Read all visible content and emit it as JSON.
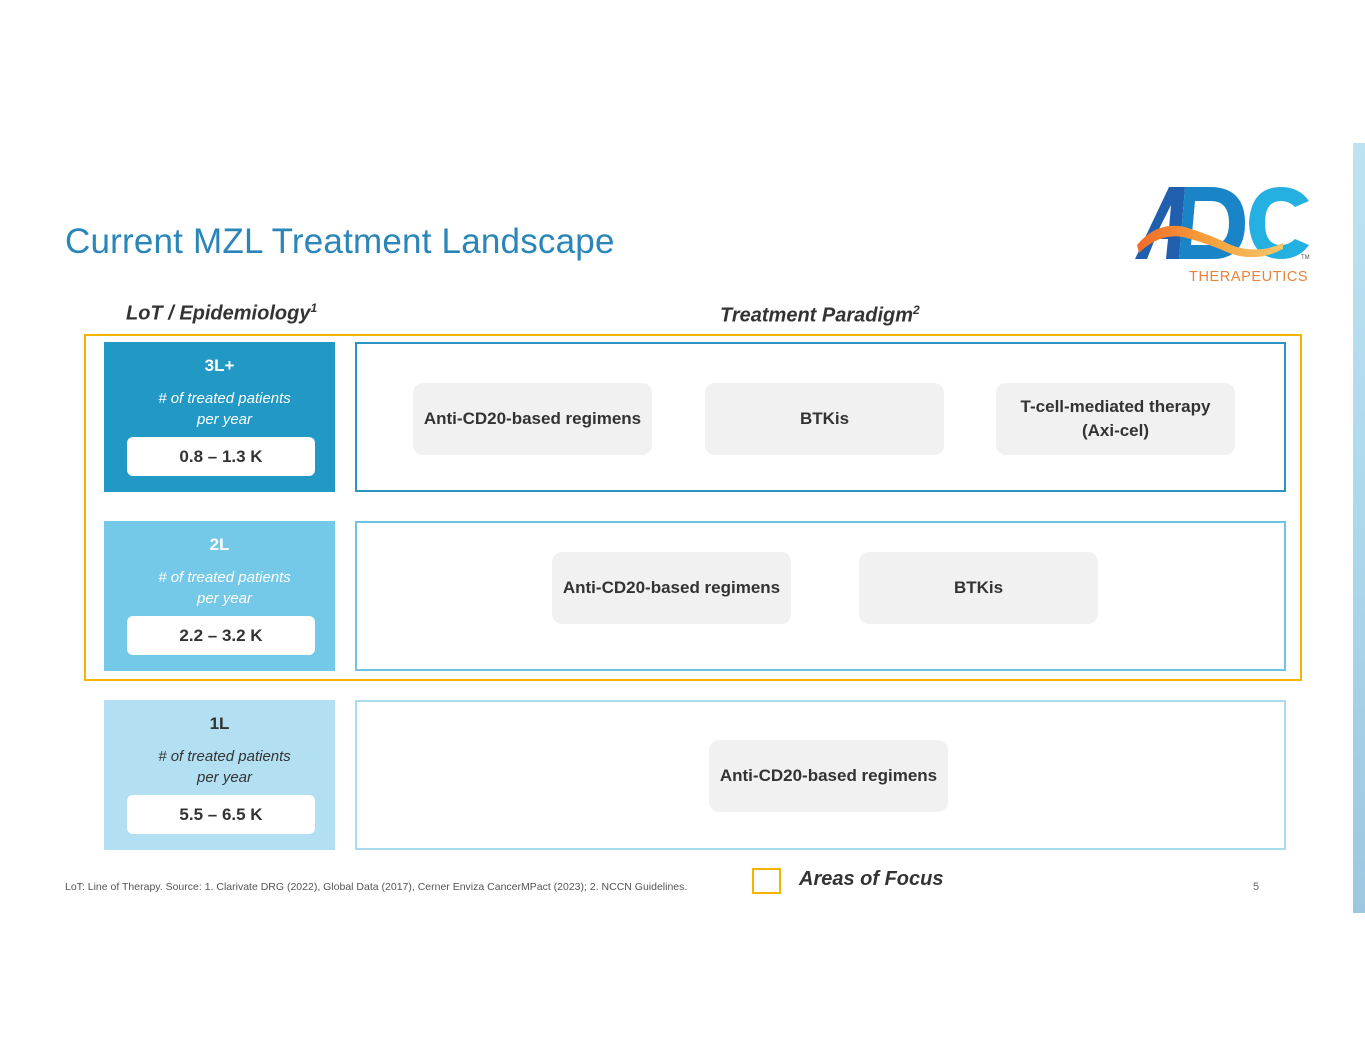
{
  "title": "Current MZL Treatment Landscape",
  "logo": {
    "wordmark": "ADC",
    "tagline": "THERAPEUTICS",
    "tm": "TM"
  },
  "headers": {
    "lot": "LoT / Epidemiology",
    "lot_sup": "1",
    "paradigm": "Treatment Paradigm",
    "paradigm_sup": "2"
  },
  "rows": [
    {
      "line": "3L+",
      "subtitle_line1": "# of treated patients",
      "subtitle_line2": "per year",
      "patients": "0.8 – 1.3 K",
      "treatments": [
        "Anti-CD20-based regimens",
        "BTKis",
        "T-cell-mediated therapy (Axi-cel)"
      ]
    },
    {
      "line": "2L",
      "subtitle_line1": "# of treated patients",
      "subtitle_line2": "per year",
      "patients": "2.2 – 3.2 K",
      "treatments": [
        "Anti-CD20-based regimens",
        "BTKis"
      ]
    },
    {
      "line": "1L",
      "subtitle_line1": "# of treated patients",
      "subtitle_line2": "per year",
      "patients": "5.5 – 6.5 K",
      "treatments": [
        "Anti-CD20-based regimens"
      ]
    }
  ],
  "legend": {
    "label": "Areas of Focus",
    "color": "#f4b400"
  },
  "footnote": "LoT: Line of Therapy. Source: 1. Clarivate DRG (2022), Global Data (2017), Cerner Enviza CancerMPact (2023); 2. NCCN Guidelines.",
  "page_number": "5",
  "colors": {
    "title": "#2a86b8",
    "row_3l": "#2298c5",
    "row_2l": "#74c8e8",
    "row_1l": "#b2e0f2",
    "focus": "#f4b400",
    "chip": "#f1f1f1"
  }
}
